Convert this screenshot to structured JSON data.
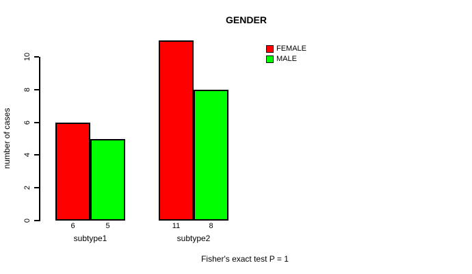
{
  "chart_data": {
    "type": "bar",
    "title": "GENDER",
    "subtitle": "Fisher's exact test P = 1",
    "ylabel": "number of cases",
    "xlabel": "",
    "categories": [
      "subtype1",
      "subtype2"
    ],
    "series": [
      {
        "name": "FEMALE",
        "color": "#ff0000",
        "values": [
          6,
          11
        ]
      },
      {
        "name": "MALE",
        "color": "#00ff00",
        "values": [
          5,
          8
        ]
      }
    ],
    "bar_value_labels": [
      [
        "6",
        "11"
      ],
      [
        "5",
        "8"
      ]
    ],
    "yticks": [
      0,
      2,
      4,
      6,
      8,
      10
    ],
    "ylim": [
      0,
      11
    ],
    "grid": false,
    "legend_position": "top-right",
    "bar_outline_color": "#000000",
    "background_color": "#ffffff"
  }
}
